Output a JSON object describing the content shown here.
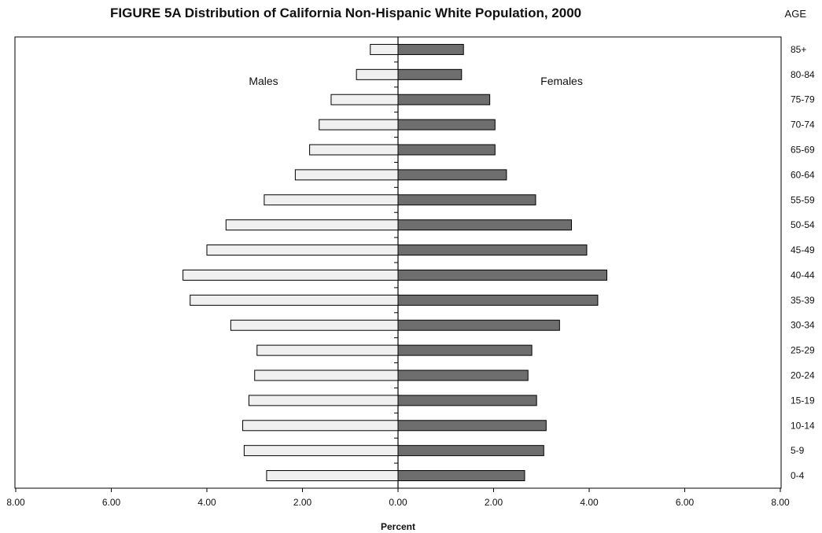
{
  "chart_data": {
    "type": "bar",
    "title": "FIGURE 5A  Distribution of California Non-Hispanic White Population, 2000",
    "age_header": "AGE",
    "xlabel": "Percent",
    "xlim": [
      -8,
      8
    ],
    "x_ticks": [
      "8.00",
      "6.00",
      "4.00",
      "2.00",
      "0.00",
      "2.00",
      "4.00",
      "6.00",
      "8.00"
    ],
    "grid": false,
    "categories": [
      "85+",
      "80-84",
      "75-79",
      "70-74",
      "65-69",
      "60-64",
      "55-59",
      "50-54",
      "45-49",
      "40-44",
      "35-39",
      "30-34",
      "25-29",
      "20-24",
      "15-19",
      "10-14",
      "5-9",
      "0-4"
    ],
    "series": [
      {
        "name": "Males",
        "color": "#f0f0f0",
        "values": [
          0.58,
          0.87,
          1.4,
          1.65,
          1.85,
          2.15,
          2.8,
          3.6,
          4.0,
          4.5,
          4.35,
          3.5,
          2.95,
          3.0,
          3.12,
          3.25,
          3.22,
          2.75
        ]
      },
      {
        "name": "Females",
        "color": "#6e6e6e",
        "values": [
          1.37,
          1.33,
          1.92,
          2.03,
          2.03,
          2.27,
          2.88,
          3.63,
          3.95,
          4.37,
          4.18,
          3.38,
          2.8,
          2.72,
          2.9,
          3.1,
          3.05,
          2.65
        ]
      }
    ]
  }
}
